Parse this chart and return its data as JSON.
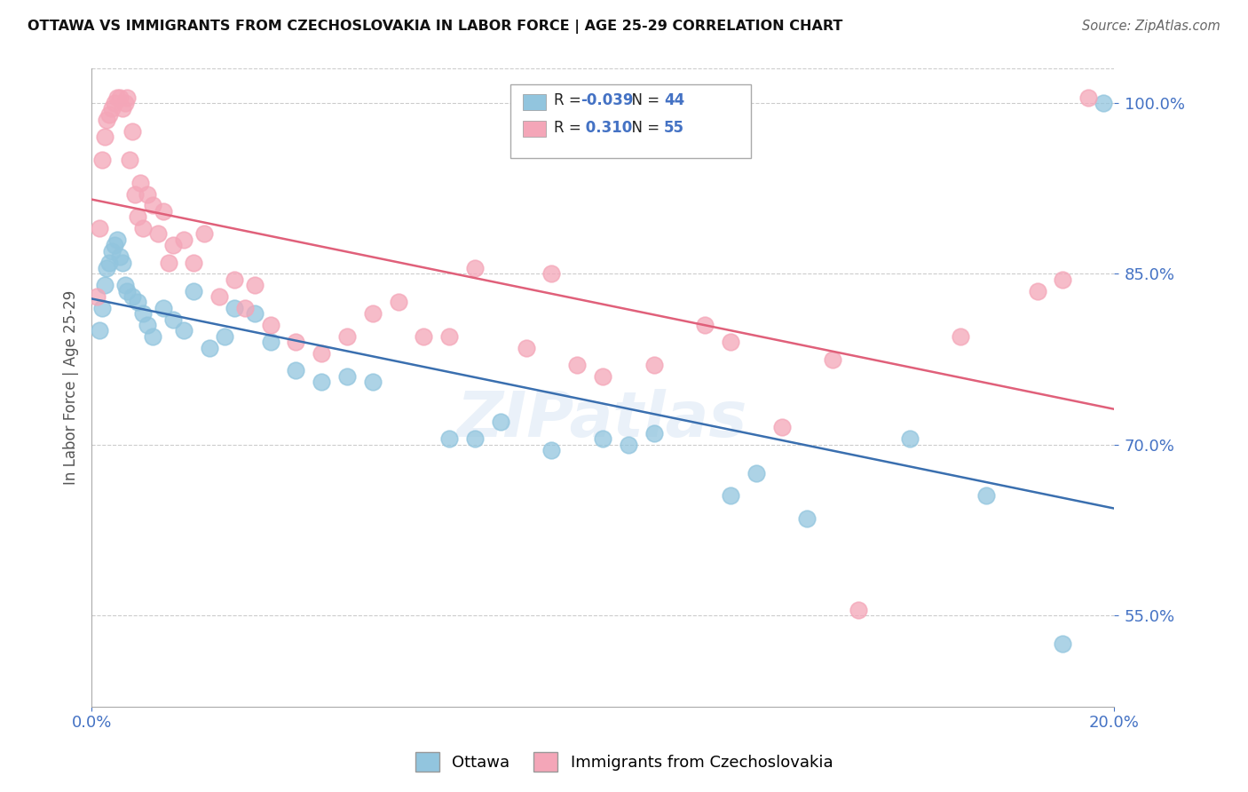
{
  "title": "OTTAWA VS IMMIGRANTS FROM CZECHOSLOVAKIA IN LABOR FORCE | AGE 25-29 CORRELATION CHART",
  "source": "Source: ZipAtlas.com",
  "ylabel": "In Labor Force | Age 25-29",
  "xlim": [
    0.0,
    20.0
  ],
  "ylim": [
    47.0,
    103.0
  ],
  "yticks": [
    55.0,
    70.0,
    85.0,
    100.0
  ],
  "ytick_labels": [
    "55.0%",
    "70.0%",
    "85.0%",
    "100.0%"
  ],
  "xtick_labels": [
    "0.0%",
    "20.0%"
  ],
  "ottawa_R": -0.039,
  "ottawa_N": 44,
  "czecho_R": 0.31,
  "czecho_N": 55,
  "blue_color": "#92c5de",
  "pink_color": "#f4a6b8",
  "blue_line_color": "#3a6faf",
  "pink_line_color": "#e0607a",
  "ottawa_x": [
    0.15,
    0.2,
    0.25,
    0.3,
    0.35,
    0.4,
    0.45,
    0.5,
    0.55,
    0.6,
    0.65,
    0.7,
    0.8,
    0.9,
    1.0,
    1.1,
    1.2,
    1.4,
    1.6,
    1.8,
    2.0,
    2.3,
    2.6,
    2.8,
    3.2,
    3.5,
    4.0,
    4.5,
    5.0,
    5.5,
    7.0,
    7.5,
    8.0,
    9.0,
    10.0,
    10.5,
    11.0,
    12.5,
    13.0,
    14.0,
    16.0,
    17.5,
    19.0,
    19.8
  ],
  "ottawa_y": [
    80.0,
    82.0,
    84.0,
    85.5,
    86.0,
    87.0,
    87.5,
    88.0,
    86.5,
    86.0,
    84.0,
    83.5,
    83.0,
    82.5,
    81.5,
    80.5,
    79.5,
    82.0,
    81.0,
    80.0,
    83.5,
    78.5,
    79.5,
    82.0,
    81.5,
    79.0,
    76.5,
    75.5,
    76.0,
    75.5,
    70.5,
    70.5,
    72.0,
    69.5,
    70.5,
    70.0,
    71.0,
    65.5,
    67.5,
    63.5,
    70.5,
    65.5,
    52.5,
    100.0
  ],
  "czecho_x": [
    0.1,
    0.15,
    0.2,
    0.25,
    0.3,
    0.35,
    0.4,
    0.45,
    0.5,
    0.55,
    0.6,
    0.65,
    0.7,
    0.75,
    0.8,
    0.85,
    0.9,
    0.95,
    1.0,
    1.1,
    1.2,
    1.3,
    1.4,
    1.5,
    1.6,
    1.8,
    2.0,
    2.2,
    2.5,
    2.8,
    3.0,
    3.2,
    3.5,
    4.0,
    4.5,
    5.0,
    5.5,
    6.0,
    6.5,
    7.0,
    7.5,
    8.5,
    9.0,
    9.5,
    10.0,
    11.0,
    12.0,
    12.5,
    13.5,
    14.5,
    15.0,
    17.0,
    18.5,
    19.0,
    19.5
  ],
  "czecho_y": [
    83.0,
    89.0,
    95.0,
    97.0,
    98.5,
    99.0,
    99.5,
    100.0,
    100.5,
    100.5,
    99.5,
    100.0,
    100.5,
    95.0,
    97.5,
    92.0,
    90.0,
    93.0,
    89.0,
    92.0,
    91.0,
    88.5,
    90.5,
    86.0,
    87.5,
    88.0,
    86.0,
    88.5,
    83.0,
    84.5,
    82.0,
    84.0,
    80.5,
    79.0,
    78.0,
    79.5,
    81.5,
    82.5,
    79.5,
    79.5,
    85.5,
    78.5,
    85.0,
    77.0,
    76.0,
    77.0,
    80.5,
    79.0,
    71.5,
    77.5,
    55.5,
    79.5,
    83.5,
    84.5,
    100.5
  ]
}
